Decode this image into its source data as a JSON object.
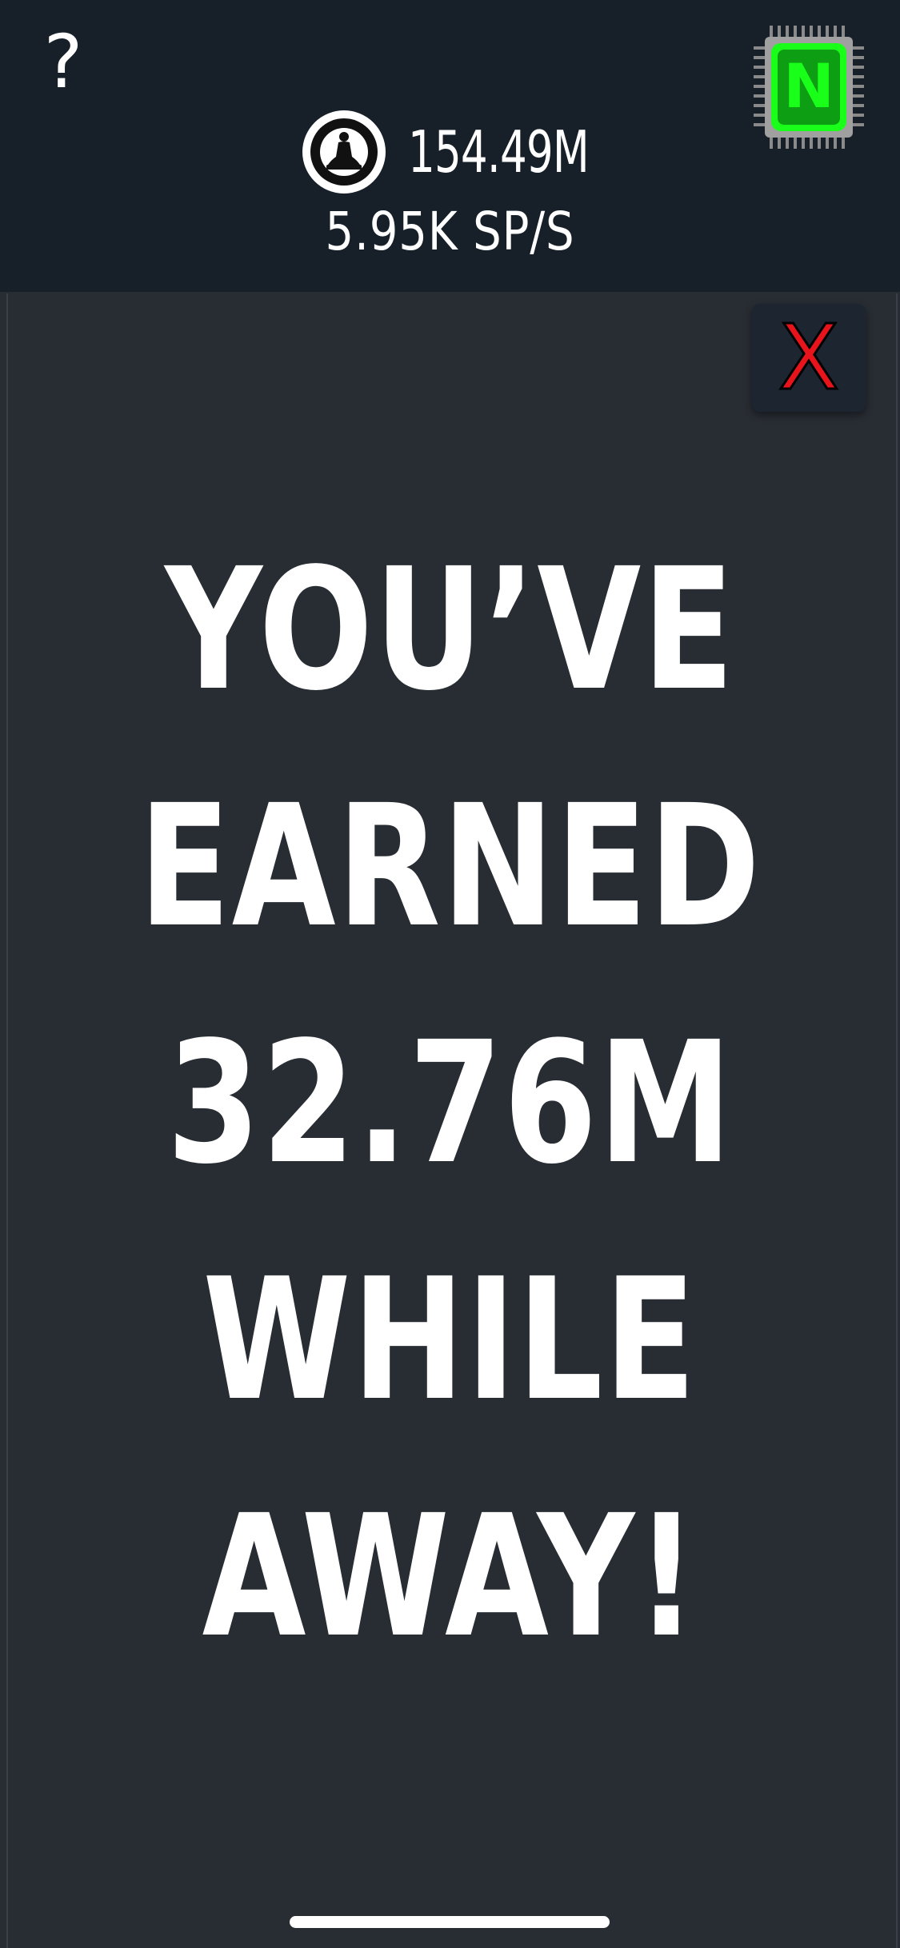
{
  "header": {
    "help_label": "?",
    "balance": "154.49M",
    "rate": "5.95K SP/S",
    "balance_icon": "meditating-buddha-icon",
    "chip_icon": "microchip-icon",
    "chip_letter": "N",
    "chip_color": "#1aff1a"
  },
  "popup": {
    "close_label": "X",
    "close_color": "#e8141c",
    "message_lines": [
      "YOU’VE",
      "EARNED",
      "32.76M",
      "WHILE",
      "AWAY!"
    ]
  },
  "colors": {
    "header_bg": "#172029",
    "popup_bg": "#282d34",
    "text": "#ffffff"
  }
}
